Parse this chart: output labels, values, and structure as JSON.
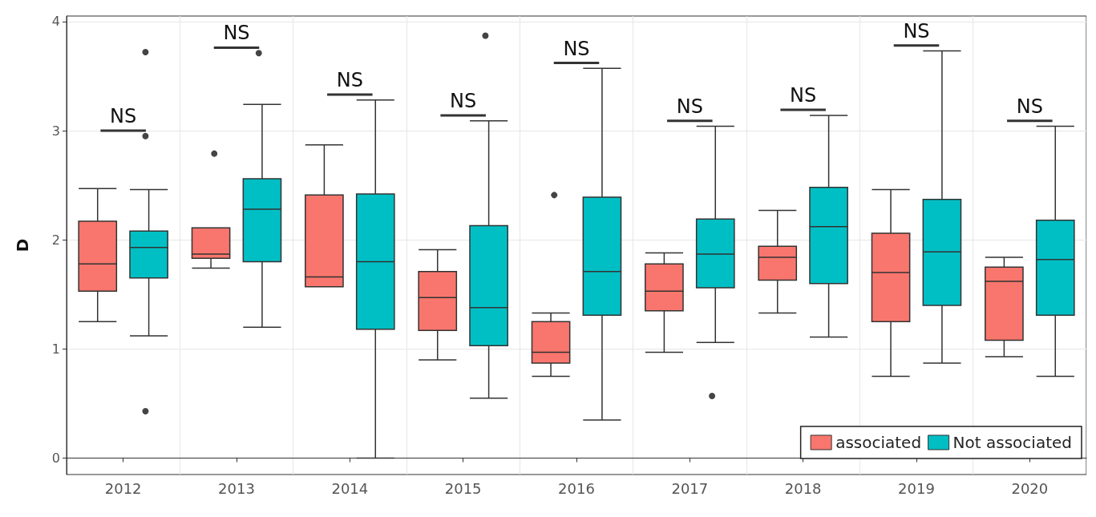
{
  "chart_data": {
    "type": "box",
    "ylabel": "D",
    "categories": [
      "2012",
      "2013",
      "2014",
      "2015",
      "2016",
      "2017",
      "2018",
      "2019",
      "2020"
    ],
    "ylim": [
      -0.15,
      4.05
    ],
    "yticks": [
      0,
      1,
      2,
      3,
      4
    ],
    "grid": true,
    "legend": "bottom right",
    "series": [
      {
        "name": "associated",
        "color": "#f8766d",
        "boxes": [
          {
            "low": 1.25,
            "q1": 1.53,
            "median": 1.78,
            "q3": 2.17,
            "high": 2.47
          },
          {
            "low": 1.74,
            "q1": 1.83,
            "median": 1.87,
            "q3": 2.11,
            "high": 2.11,
            "outliers": [
              2.79
            ]
          },
          {
            "low": 1.57,
            "q1": 1.57,
            "median": 1.66,
            "q3": 2.41,
            "high": 2.87
          },
          {
            "low": 0.9,
            "q1": 1.17,
            "median": 1.47,
            "q3": 1.71,
            "high": 1.91
          },
          {
            "low": 0.75,
            "q1": 0.87,
            "median": 0.97,
            "q3": 1.25,
            "high": 1.33,
            "outliers": [
              2.41
            ]
          },
          {
            "low": 0.97,
            "q1": 1.35,
            "median": 1.53,
            "q3": 1.78,
            "high": 1.88
          },
          {
            "low": 1.33,
            "q1": 1.63,
            "median": 1.84,
            "q3": 1.94,
            "high": 2.27
          },
          {
            "low": 0.75,
            "q1": 1.25,
            "median": 1.7,
            "q3": 2.06,
            "high": 2.46
          },
          {
            "low": 0.93,
            "q1": 1.08,
            "median": 1.62,
            "q3": 1.75,
            "high": 1.84
          }
        ]
      },
      {
        "name": "Not associated",
        "color": "#00bfc4",
        "boxes": [
          {
            "low": 1.12,
            "q1": 1.65,
            "median": 1.93,
            "q3": 2.08,
            "high": 2.46,
            "outliers": [
              3.72,
              2.95,
              0.43
            ]
          },
          {
            "low": 1.2,
            "q1": 1.8,
            "median": 2.28,
            "q3": 2.56,
            "high": 3.24,
            "outliers": [
              3.71
            ]
          },
          {
            "low": 0,
            "q1": 1.18,
            "median": 1.8,
            "q3": 2.42,
            "high": 3.28
          },
          {
            "low": 0.55,
            "q1": 1.03,
            "median": 1.38,
            "q3": 2.13,
            "high": 3.09,
            "outliers": [
              3.87
            ]
          },
          {
            "low": 0.35,
            "q1": 1.31,
            "median": 1.71,
            "q3": 2.39,
            "high": 3.57
          },
          {
            "low": 1.06,
            "q1": 1.56,
            "median": 1.87,
            "q3": 2.19,
            "high": 3.04,
            "outliers": [
              0.57
            ]
          },
          {
            "low": 1.11,
            "q1": 1.6,
            "median": 2.12,
            "q3": 2.48,
            "high": 3.14
          },
          {
            "low": 0.87,
            "q1": 1.4,
            "median": 1.89,
            "q3": 2.37,
            "high": 3.73
          },
          {
            "low": 0.75,
            "q1": 1.31,
            "median": 1.82,
            "q3": 2.18,
            "high": 3.04
          }
        ]
      }
    ],
    "annotations": [
      "NS",
      "NS",
      "NS",
      "NS",
      "NS",
      "NS",
      "NS",
      "NS",
      "NS"
    ]
  }
}
